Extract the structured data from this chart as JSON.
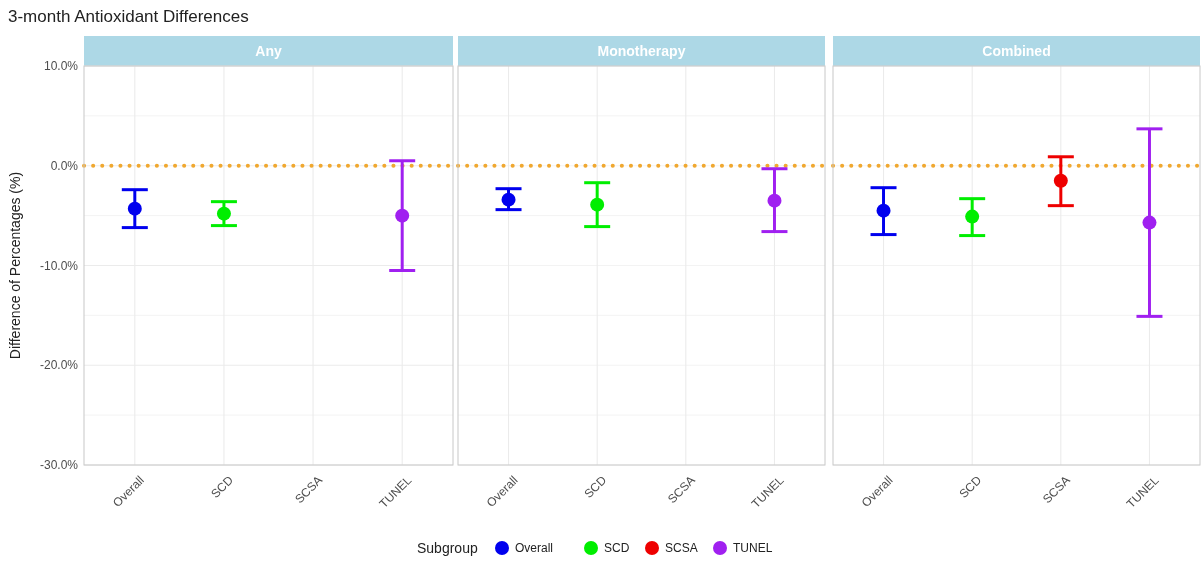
{
  "chart_data": [
    {
      "type": "scatter",
      "title": "3-month Antioxidant Differences",
      "subtitle": "Any",
      "ylabel": "Difference of Percentages (%)",
      "categories": [
        "Overall",
        "SCD",
        "SCSA",
        "TUNEL"
      ],
      "ylim": [
        -30,
        10
      ],
      "yticks": [
        {
          "value": -30,
          "label": "-30.0%"
        },
        {
          "value": -25,
          "label": null
        },
        {
          "value": -20,
          "label": "-20.0%"
        },
        {
          "value": -15,
          "label": null
        },
        {
          "value": -10,
          "label": "-10.0%"
        },
        {
          "value": -5,
          "label": null
        },
        {
          "value": 0,
          "label": "0.0%"
        },
        {
          "value": 5,
          "label": null
        },
        {
          "value": 10,
          "label": "10.0%"
        }
      ],
      "grid": true,
      "marker": "circle",
      "legend": "bottom",
      "legend_title": "Subgroup",
      "ref_lines": [
        {
          "axis": "y",
          "value": 0,
          "color": "#f0a830",
          "line_style": "dotted"
        }
      ],
      "series": [
        {
          "name": "Overall",
          "color": "#0000ee",
          "x": [
            "Overall"
          ],
          "values": [
            -4.3
          ],
          "errors": [
            [
              -6.2,
              -2.4
            ]
          ]
        },
        {
          "name": "SCD",
          "color": "#00ee00",
          "x": [
            "SCD"
          ],
          "values": [
            -4.8
          ],
          "errors": [
            [
              -6.0,
              -3.6
            ]
          ]
        },
        {
          "name": "TUNEL",
          "color": "#a020f0",
          "x": [
            "TUNEL"
          ],
          "values": [
            -5.0
          ],
          "errors": [
            [
              -10.5,
              0.5
            ]
          ]
        }
      ]
    },
    {
      "type": "scatter",
      "subtitle": "Monotherapy",
      "categories": [
        "Overall",
        "SCD",
        "SCSA",
        "TUNEL"
      ],
      "ylim": [
        -30,
        10
      ],
      "yticks": [
        {
          "value": -30,
          "label": null
        },
        {
          "value": -25,
          "label": null
        },
        {
          "value": -20,
          "label": null
        },
        {
          "value": -15,
          "label": null
        },
        {
          "value": -10,
          "label": null
        },
        {
          "value": -5,
          "label": null
        },
        {
          "value": 0,
          "label": null
        },
        {
          "value": 5,
          "label": null
        },
        {
          "value": 10,
          "label": null
        }
      ],
      "tick_labels": "x",
      "grid": true,
      "marker": "circle",
      "legend": "bottom",
      "ref_lines": [
        {
          "axis": "y",
          "value": 0,
          "color": "#f0a830",
          "line_style": "dotted"
        }
      ],
      "series": [
        {
          "name": "Overall",
          "color": "#0000ee",
          "x": [
            "Overall"
          ],
          "values": [
            -3.4
          ],
          "errors": [
            [
              -4.4,
              -2.3
            ]
          ]
        },
        {
          "name": "SCD",
          "color": "#00ee00",
          "x": [
            "SCD"
          ],
          "values": [
            -3.9
          ],
          "errors": [
            [
              -6.1,
              -1.7
            ]
          ]
        },
        {
          "name": "TUNEL",
          "color": "#a020f0",
          "x": [
            "TUNEL"
          ],
          "values": [
            -3.5
          ],
          "errors": [
            [
              -6.6,
              -0.3
            ]
          ]
        }
      ]
    },
    {
      "type": "scatter",
      "subtitle": "Combined",
      "categories": [
        "Overall",
        "SCD",
        "SCSA",
        "TUNEL"
      ],
      "ylim": [
        -30,
        10
      ],
      "yticks": [
        {
          "value": -30,
          "label": null
        },
        {
          "value": -25,
          "label": null
        },
        {
          "value": -20,
          "label": null
        },
        {
          "value": -15,
          "label": null
        },
        {
          "value": -10,
          "label": null
        },
        {
          "value": -5,
          "label": null
        },
        {
          "value": 0,
          "label": null
        },
        {
          "value": 5,
          "label": null
        },
        {
          "value": 10,
          "label": null
        }
      ],
      "tick_labels": "x",
      "grid": true,
      "marker": "circle",
      "legend": "bottom",
      "ref_lines": [
        {
          "axis": "y",
          "value": 0,
          "color": "#f0a830",
          "line_style": "dotted"
        }
      ],
      "series": [
        {
          "name": "Overall",
          "color": "#0000ee",
          "x": [
            "Overall"
          ],
          "values": [
            -4.5
          ],
          "errors": [
            [
              -6.9,
              -2.2
            ]
          ]
        },
        {
          "name": "SCD",
          "color": "#00ee00",
          "x": [
            "SCD"
          ],
          "values": [
            -5.1
          ],
          "errors": [
            [
              -7.0,
              -3.3
            ]
          ]
        },
        {
          "name": "SCSA",
          "color": "#ee0000",
          "x": [
            "SCSA"
          ],
          "values": [
            -1.5
          ],
          "errors": [
            [
              -4.0,
              0.9
            ]
          ]
        },
        {
          "name": "TUNEL",
          "color": "#a020f0",
          "x": [
            "TUNEL"
          ],
          "values": [
            -5.7
          ],
          "errors": [
            [
              -15.1,
              3.7
            ]
          ]
        }
      ]
    }
  ]
}
